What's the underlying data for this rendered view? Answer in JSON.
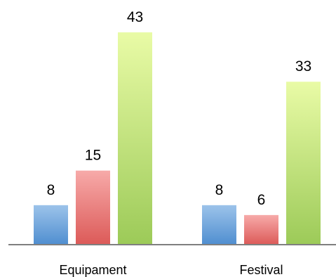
{
  "chart_data": {
    "type": "bar",
    "title": "",
    "xlabel": "",
    "ylabel": "",
    "categories": [
      "Equipament",
      "Festival"
    ],
    "series": [
      {
        "color": "#5b9bd5",
        "values": [
          8,
          8
        ]
      },
      {
        "color": "#e06666",
        "values": [
          15,
          6
        ]
      },
      {
        "color": "#9dcf5c",
        "values": [
          43,
          33
        ]
      }
    ],
    "ylim": [
      0,
      43
    ],
    "grid": false,
    "legend": "none",
    "axis_color": "#7f7f7f"
  }
}
